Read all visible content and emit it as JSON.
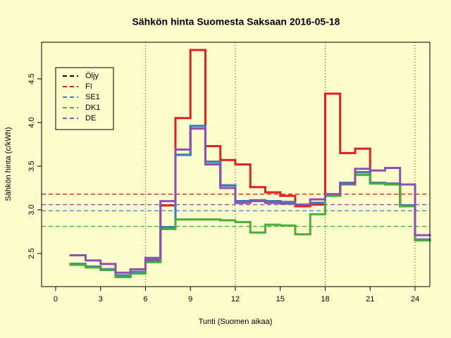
{
  "chart_data": {
    "type": "step",
    "title": "Sähkön hinta Suomesta Saksaan 2016-05-18",
    "x_label": "Tunti (Suomen aikaa)",
    "y_label": "Sähkön hinta (c/kWh)",
    "x": [
      1,
      2,
      3,
      4,
      5,
      6,
      7,
      8,
      9,
      10,
      11,
      12,
      13,
      14,
      15,
      16,
      17,
      18,
      19,
      20,
      21,
      22,
      23,
      24
    ],
    "series": [
      {
        "name": "Öljy",
        "color": "#000000",
        "values": [
          2.38,
          2.35,
          2.32,
          2.25,
          2.29,
          2.43,
          2.8,
          3.63,
          3.96,
          3.55,
          3.28,
          3.1,
          3.11,
          3.1,
          3.09,
          3.06,
          3.08,
          3.17,
          3.31,
          3.43,
          3.31,
          3.3,
          3.05,
          2.66
        ]
      },
      {
        "name": "FI",
        "color": "#df2020",
        "average": 3.18,
        "values": [
          2.38,
          2.35,
          2.32,
          2.24,
          2.28,
          2.42,
          3.05,
          4.05,
          4.83,
          3.73,
          3.57,
          3.52,
          3.26,
          3.2,
          3.16,
          3.04,
          3.06,
          4.33,
          3.65,
          3.7,
          3.31,
          3.3,
          3.05,
          2.66
        ]
      },
      {
        "name": "SE1",
        "color": "#3a7fc4",
        "average": 2.99,
        "values": [
          2.38,
          2.35,
          2.32,
          2.25,
          2.29,
          2.43,
          2.8,
          3.63,
          3.96,
          3.55,
          3.28,
          3.1,
          3.11,
          3.1,
          3.09,
          3.06,
          3.08,
          3.17,
          3.31,
          3.43,
          3.31,
          3.3,
          3.05,
          2.66
        ]
      },
      {
        "name": "DK1",
        "color": "#4aac3a",
        "average": 2.81,
        "values": [
          2.37,
          2.34,
          2.31,
          2.23,
          2.27,
          2.4,
          2.78,
          2.89,
          2.89,
          2.89,
          2.88,
          2.86,
          2.74,
          2.83,
          2.82,
          2.72,
          2.95,
          3.16,
          3.29,
          3.4,
          3.3,
          3.29,
          3.04,
          2.65
        ]
      },
      {
        "name": "DE",
        "color": "#9050b0",
        "average": 3.06,
        "values": [
          2.48,
          2.42,
          2.38,
          2.28,
          2.32,
          2.45,
          3.1,
          3.69,
          3.93,
          3.52,
          3.25,
          3.08,
          3.1,
          3.08,
          3.07,
          3.06,
          3.12,
          3.18,
          3.3,
          3.47,
          3.45,
          3.48,
          3.29,
          2.71
        ]
      }
    ],
    "xlim": [
      -0.94,
      24.99
    ],
    "ylim": [
      2.121,
      4.919
    ],
    "xticks": [
      0,
      3,
      6,
      9,
      12,
      15,
      18,
      21,
      24
    ],
    "yticks": [
      2.5,
      {
        "value": 3.0,
        "label": "3.0"
      },
      3.5,
      {
        "value": 4.0,
        "label": "4.0"
      },
      4.5
    ],
    "vlines": [
      6,
      12,
      18,
      24
    ],
    "legend": "topleft"
  }
}
